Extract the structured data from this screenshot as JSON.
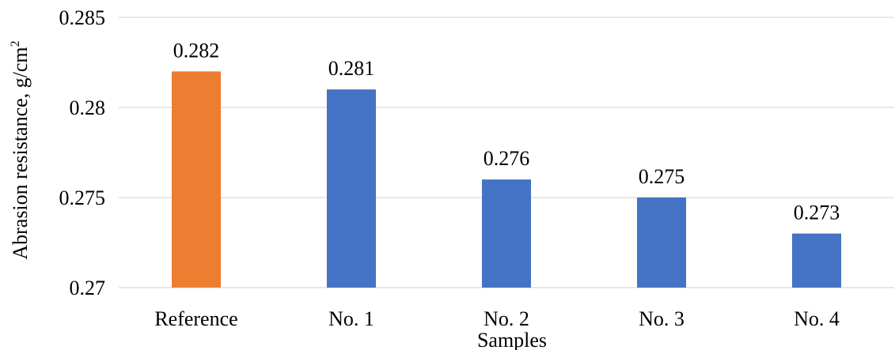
{
  "chart_data": {
    "type": "bar",
    "categories": [
      "Reference",
      "No. 1",
      "No. 2",
      "No. 3",
      "No. 4"
    ],
    "values": [
      0.282,
      0.281,
      0.276,
      0.275,
      0.273
    ],
    "value_labels": [
      "0.282",
      "0.281",
      "0.276",
      "0.275",
      "0.273"
    ],
    "bar_colors": [
      "#ED7D31",
      "#4472C4",
      "#4472C4",
      "#4472C4",
      "#4472C4"
    ],
    "yticks": [
      0.27,
      0.275,
      0.28,
      0.285
    ],
    "ytick_labels": [
      "0.27",
      "0.275",
      "0.28",
      "0.285"
    ],
    "ylim": [
      0.27,
      0.285
    ],
    "xlabel": "Samples",
    "ylabel_main": "Abrasion resistance, g/cm",
    "ylabel_sup": "2",
    "grid": true,
    "legend": false
  }
}
